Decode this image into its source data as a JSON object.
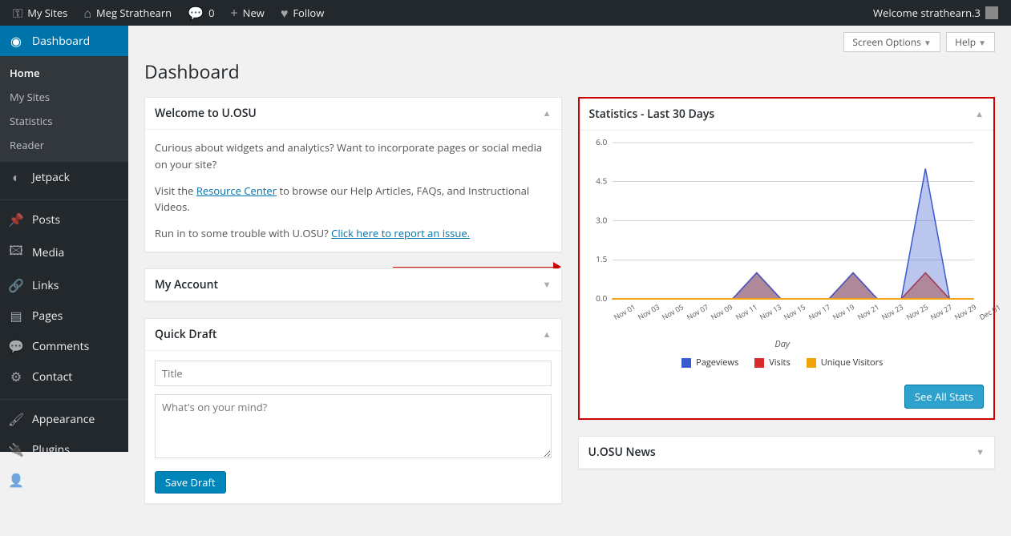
{
  "adminbar": {
    "my_sites": "My Sites",
    "site_name": "Meg Strathearn",
    "comments": "0",
    "new": "New",
    "follow": "Follow",
    "welcome": "Welcome strathearn.3"
  },
  "sidebar": {
    "dashboard": "Dashboard",
    "submenu": [
      "Home",
      "My Sites",
      "Statistics",
      "Reader"
    ],
    "items": [
      "Jetpack",
      "Posts",
      "Media",
      "Links",
      "Pages",
      "Comments",
      "Contact",
      "Appearance",
      "Plugins",
      "Users"
    ]
  },
  "top_buttons": {
    "screen_options": "Screen Options",
    "help": "Help"
  },
  "page_title": "Dashboard",
  "welcome_box": {
    "title": "Welcome to U.OSU",
    "p1": "Curious about widgets and analytics? Want to incorporate pages or social media on your site?",
    "p2a": "Visit the ",
    "p2link": "Resource Center",
    "p2b": " to browse our Help Articles, FAQs, and Instructional Videos.",
    "p3a": "Run in to some trouble with U.OSU? ",
    "p3link": "Click here to report an issue."
  },
  "account_box": {
    "title": "My Account"
  },
  "draft_box": {
    "title": "Quick Draft",
    "title_placeholder": "Title",
    "body_placeholder": "What's on your mind?",
    "save": "Save Draft"
  },
  "stats_box": {
    "title": "Statistics - Last 30 Days",
    "chart": {
      "ylim": [
        0,
        6.0
      ],
      "yticks": [
        0.0,
        1.5,
        3.0,
        4.5,
        6.0
      ],
      "xlabels": [
        "Nov 01",
        "Nov 03",
        "Nov 05",
        "Nov 07",
        "Nov 09",
        "Nov 11",
        "Nov 13",
        "Nov 15",
        "Nov 17",
        "Nov 19",
        "Nov 21",
        "Nov 23",
        "Nov 25",
        "Nov 27",
        "Nov 29",
        "Dec 01"
      ],
      "axis_label": "Day",
      "series": [
        {
          "name": "Pageviews",
          "color": "#3a5bcd",
          "fill": "rgba(58,91,205,0.35)",
          "data": [
            0,
            0,
            0,
            0,
            0,
            0,
            1,
            0,
            0,
            0,
            1,
            0,
            0,
            5,
            0,
            0
          ]
        },
        {
          "name": "Visits",
          "color": "#d92b2b",
          "fill": "rgba(217,43,43,0.35)",
          "data": [
            0,
            0,
            0,
            0,
            0,
            0,
            1,
            0,
            0,
            0,
            1,
            0,
            0,
            1,
            0,
            0
          ]
        },
        {
          "name": "Unique Visitors",
          "color": "#f0a30a",
          "fill": "rgba(240,163,10,0.35)",
          "data": [
            0,
            0,
            0,
            0,
            0,
            0,
            1,
            0,
            0,
            0,
            1,
            0,
            0,
            1,
            0,
            0
          ]
        }
      ],
      "grid_color": "#aaa",
      "baseline_color": "#f0a30a"
    },
    "see_all": "See All Stats"
  },
  "news_box": {
    "title": "U.OSU News"
  }
}
